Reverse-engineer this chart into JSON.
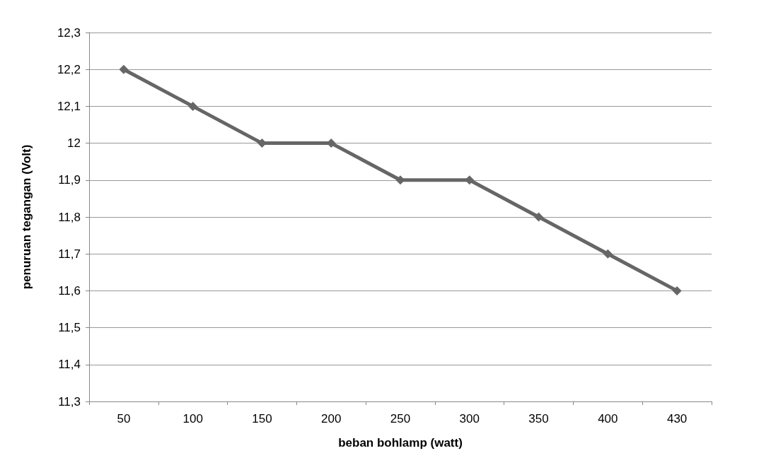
{
  "chart_data": {
    "type": "line",
    "xlabel": "beban bohlamp (watt)",
    "ylabel": "penuruan tegangan (Volt)",
    "categories": [
      "50",
      "100",
      "150",
      "200",
      "250",
      "300",
      "350",
      "400",
      "430"
    ],
    "series": [
      {
        "color": "#666666",
        "values": [
          12.2,
          12.1,
          12.0,
          12.0,
          11.9,
          11.9,
          11.8,
          11.7,
          11.6
        ]
      }
    ],
    "ylim": [
      11.3,
      12.3
    ],
    "yticks": [
      {
        "value": 11.3,
        "label": "11,3"
      },
      {
        "value": 11.4,
        "label": "11,4"
      },
      {
        "value": 11.5,
        "label": "11,5"
      },
      {
        "value": 11.6,
        "label": "11,6"
      },
      {
        "value": 11.7,
        "label": "11,7"
      },
      {
        "value": 11.8,
        "label": "11,8"
      },
      {
        "value": 11.9,
        "label": "11,9"
      },
      12,
      {
        "value": 12.1,
        "label": "12,1"
      },
      {
        "value": 12.2,
        "label": "12,2"
      },
      {
        "value": 12.3,
        "label": "12,3"
      }
    ],
    "grid": "y",
    "marker": "diamond",
    "line_style": "solid"
  }
}
